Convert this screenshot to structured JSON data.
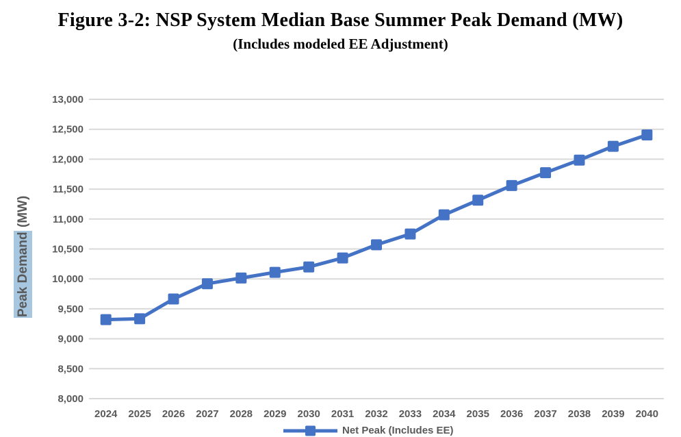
{
  "title": "Figure 3-2: NSP System Median Base Summer Peak Demand (MW)",
  "subtitle": "(Includes modeled EE Adjustment)",
  "y_axis": {
    "highlighted": "Peak Demand",
    "units": " (MW)"
  },
  "legend": {
    "label": "Net Peak (Includes EE)"
  },
  "colors": {
    "series": "#4472C4",
    "gridline": "#D9D9D9",
    "axis_text": "#595959",
    "axis_label_highlight": "#A7C7E0"
  },
  "chart_data": {
    "type": "line",
    "title": "Figure 3-2: NSP System Median Base Summer Peak Demand (MW)",
    "subtitle": "(Includes modeled EE Adjustment)",
    "xlabel": "",
    "ylabel": "Peak Demand (MW)",
    "x": [
      2024,
      2025,
      2026,
      2027,
      2028,
      2029,
      2030,
      2031,
      2032,
      2033,
      2034,
      2035,
      2036,
      2037,
      2038,
      2039,
      2040
    ],
    "series": [
      {
        "name": "Net Peak (Includes EE)",
        "marker": "square",
        "color": "#4472C4",
        "values": [
          9320,
          9335,
          9665,
          9920,
          10015,
          10110,
          10200,
          10350,
          10570,
          10750,
          11070,
          11315,
          11560,
          11775,
          11985,
          12215,
          12405
        ]
      }
    ],
    "ylim": [
      8000,
      13000
    ],
    "ytick_step": 500,
    "ytick_labels": [
      "8,000",
      "8,500",
      "9,000",
      "9,500",
      "10,000",
      "10,500",
      "11,000",
      "11,500",
      "12,000",
      "12,500",
      "13,000"
    ],
    "grid": true,
    "legend_position": "bottom"
  }
}
